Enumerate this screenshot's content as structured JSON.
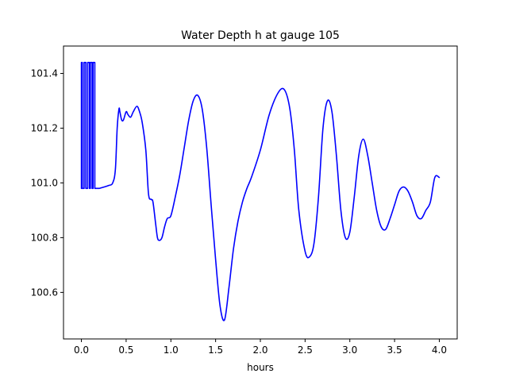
{
  "chart_data": {
    "type": "line",
    "title": "Water Depth h at gauge 105",
    "xlabel": "hours",
    "ylabel": "",
    "xlim": [
      -0.2,
      4.2
    ],
    "ylim": [
      100.43,
      101.5
    ],
    "xticks": [
      0.0,
      0.5,
      1.0,
      1.5,
      2.0,
      2.5,
      3.0,
      3.5,
      4.0
    ],
    "xtick_labels": [
      "0.0",
      "0.5",
      "1.0",
      "1.5",
      "2.0",
      "2.5",
      "3.0",
      "3.5",
      "4.0"
    ],
    "yticks": [
      100.6,
      100.8,
      101.0,
      101.2,
      101.4
    ],
    "ytick_labels": [
      "100.6",
      "100.8",
      "101.0",
      "101.2",
      "101.4"
    ],
    "grid": false,
    "series": [
      {
        "color": "#0000ff",
        "x": [
          0.0,
          0.0,
          0.01,
          0.01,
          0.03,
          0.03,
          0.05,
          0.05,
          0.07,
          0.07,
          0.09,
          0.09,
          0.1,
          0.1,
          0.12,
          0.12,
          0.13,
          0.13,
          0.15,
          0.15,
          0.2,
          0.3,
          0.35,
          0.38,
          0.4,
          0.42,
          0.43,
          0.45,
          0.47,
          0.5,
          0.52,
          0.55,
          0.58,
          0.62,
          0.65,
          0.68,
          0.72,
          0.75,
          0.78,
          0.8,
          0.83,
          0.85,
          0.87,
          0.9,
          0.93,
          0.96,
          1.0,
          1.05,
          1.1,
          1.15,
          1.2,
          1.25,
          1.3,
          1.35,
          1.4,
          1.45,
          1.5,
          1.55,
          1.6,
          1.65,
          1.7,
          1.75,
          1.8,
          1.85,
          1.9,
          2.0,
          2.1,
          2.2,
          2.27,
          2.33,
          2.38,
          2.43,
          2.5,
          2.55,
          2.6,
          2.65,
          2.7,
          2.75,
          2.8,
          2.85,
          2.9,
          2.95,
          3.0,
          3.05,
          3.1,
          3.15,
          3.2,
          3.25,
          3.3,
          3.35,
          3.4,
          3.45,
          3.5,
          3.55,
          3.6,
          3.65,
          3.7,
          3.75,
          3.8,
          3.85,
          3.9,
          3.95,
          4.0
        ],
        "y": [
          100.98,
          101.44,
          101.44,
          100.98,
          100.98,
          101.44,
          101.44,
          100.98,
          100.98,
          101.44,
          101.44,
          100.98,
          100.98,
          101.44,
          101.44,
          100.98,
          100.98,
          101.44,
          101.44,
          100.98,
          100.98,
          100.99,
          101.0,
          101.05,
          101.2,
          101.27,
          101.26,
          101.23,
          101.23,
          101.26,
          101.25,
          101.24,
          101.26,
          101.28,
          101.26,
          101.22,
          101.12,
          100.96,
          100.94,
          100.93,
          100.85,
          100.8,
          100.79,
          100.8,
          100.84,
          100.87,
          100.88,
          100.95,
          101.03,
          101.13,
          101.23,
          101.3,
          101.32,
          101.27,
          101.13,
          100.92,
          100.72,
          100.55,
          100.5,
          100.62,
          100.76,
          100.86,
          100.93,
          100.98,
          101.02,
          101.12,
          101.25,
          101.33,
          101.34,
          101.27,
          101.12,
          100.9,
          100.75,
          100.73,
          100.78,
          100.95,
          101.2,
          101.3,
          101.26,
          101.1,
          100.9,
          100.8,
          100.82,
          100.95,
          101.1,
          101.16,
          101.1,
          101.0,
          100.9,
          100.84,
          100.83,
          100.87,
          100.92,
          100.97,
          100.985,
          100.97,
          100.93,
          100.88,
          100.87,
          100.9,
          100.93,
          101.02,
          101.02
        ]
      }
    ]
  }
}
